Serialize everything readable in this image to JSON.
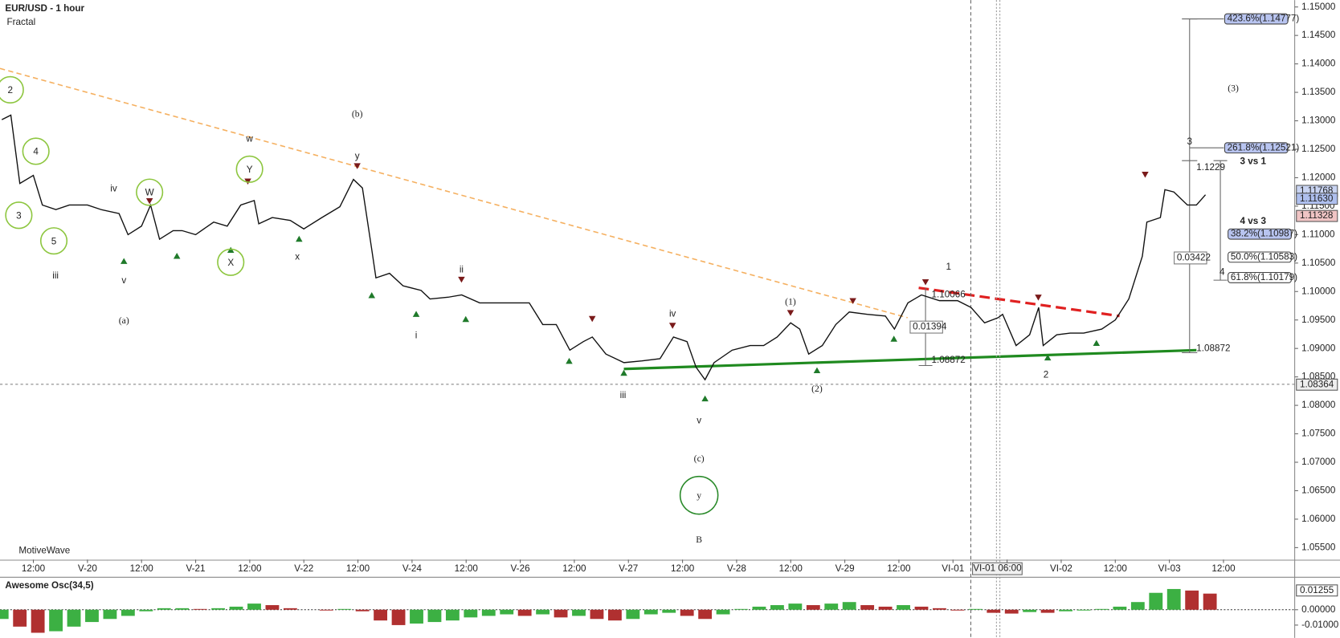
{
  "chart_data": [
    {
      "type": "line",
      "title": "EUR/USD - 1 hour",
      "subtitle": "Fractal",
      "watermark": "MotiveWave",
      "cursor_label": "VI-01 06:00",
      "color": "#111111",
      "x": [
        -7,
        -5,
        -3,
        0,
        2,
        5,
        8,
        12,
        15,
        19,
        21,
        24,
        26,
        28,
        31,
        33,
        36,
        40,
        43,
        46,
        49,
        50,
        53,
        57,
        60,
        64,
        68,
        71,
        73,
        75,
        76,
        79,
        82,
        86,
        88,
        92,
        95,
        99,
        103,
        106,
        110,
        113,
        116,
        119,
        122,
        124,
        127,
        131,
        135,
        139,
        142,
        145,
        147,
        149,
        151,
        155,
        159,
        162,
        165,
        168,
        170,
        172,
        175,
        178,
        181,
        185,
        189,
        191,
        194,
        197,
        201,
        205,
        208,
        211,
        214,
        215,
        218,
        221,
        223,
        224,
        227,
        230,
        233,
        237,
        240,
        243,
        246,
        247,
        250,
        251,
        253,
        256,
        258,
        260
      ],
      "values": [
        1.1302,
        1.131,
        1.119,
        1.1204,
        1.1152,
        1.1144,
        1.1152,
        1.1152,
        1.1144,
        1.1137,
        1.11,
        1.1115,
        1.1152,
        1.1092,
        1.1107,
        1.1107,
        1.11,
        1.1122,
        1.1115,
        1.1152,
        1.116,
        1.1119,
        1.113,
        1.1125,
        1.111,
        1.113,
        1.1149,
        1.1197,
        1.1182,
        1.1077,
        1.1024,
        1.1032,
        1.101,
        1.1002,
        1.0987,
        1.099,
        1.0994,
        1.098,
        1.098,
        1.098,
        1.098,
        1.0942,
        1.0942,
        1.0897,
        1.0912,
        1.092,
        1.089,
        1.0875,
        1.0878,
        1.0882,
        1.092,
        1.0912,
        1.0867,
        1.0845,
        1.0875,
        1.0897,
        1.0905,
        1.0905,
        1.092,
        1.0945,
        1.0934,
        1.089,
        1.0905,
        1.0942,
        1.0964,
        1.096,
        1.0957,
        1.0934,
        1.098,
        1.0994,
        1.0984,
        1.0984,
        1.0972,
        1.0945,
        1.0954,
        1.096,
        1.0905,
        1.0924,
        1.0972,
        1.0905,
        1.0924,
        1.0927,
        1.0927,
        1.0934,
        1.095,
        1.0987,
        1.1062,
        1.1122,
        1.113,
        1.1179,
        1.1175,
        1.1152,
        1.1152,
        1.117
      ],
      "xlim": [
        -7.4,
        279.8
      ],
      "xticks": [
        {
          "value": 0,
          "label": "12:00"
        },
        {
          "value": 12,
          "label": "V-20"
        },
        {
          "value": 24,
          "label": "12:00"
        },
        {
          "value": 36,
          "label": "V-21"
        },
        {
          "value": 48,
          "label": "12:00"
        },
        {
          "value": 60,
          "label": "V-22"
        },
        {
          "value": 72,
          "label": "12:00"
        },
        {
          "value": 84,
          "label": "V-24"
        },
        {
          "value": 96,
          "label": "12:00"
        },
        {
          "value": 108,
          "label": "V-26"
        },
        {
          "value": 120,
          "label": "12:00"
        },
        {
          "value": 132,
          "label": "V-27"
        },
        {
          "value": 144,
          "label": "12:00"
        },
        {
          "value": 156,
          "label": "V-28"
        },
        {
          "value": 168,
          "label": "12:00"
        },
        {
          "value": 180,
          "label": "V-29"
        },
        {
          "value": 192,
          "label": "12:00"
        },
        {
          "value": 204,
          "label": "VI-01"
        },
        {
          "value": 216,
          "label": "12:00"
        },
        {
          "value": 228,
          "label": "VI-02"
        },
        {
          "value": 240,
          "label": "12:00"
        },
        {
          "value": 252,
          "label": "VI-03"
        },
        {
          "value": 264,
          "label": "12:00"
        }
      ],
      "ylim": [
        1.0529,
        1.1512
      ],
      "yticks": [
        {
          "value": 1.055,
          "label": "1.05500"
        },
        {
          "value": 1.06,
          "label": "1.06000"
        },
        {
          "value": 1.065,
          "label": "1.06500"
        },
        {
          "value": 1.07,
          "label": "1.07000"
        },
        {
          "value": 1.075,
          "label": "1.07500"
        },
        {
          "value": 1.08,
          "label": "1.08000"
        },
        {
          "value": 1.085,
          "label": "1.08500"
        },
        {
          "value": 1.09,
          "label": "1.09000"
        },
        {
          "value": 1.095,
          "label": "1.09500"
        },
        {
          "value": 1.1,
          "label": "1.10000"
        },
        {
          "value": 1.105,
          "label": "1.10500"
        },
        {
          "value": 1.11,
          "label": "1.11000"
        },
        {
          "value": 1.115,
          "label": "1.11500"
        },
        {
          "value": 1.12,
          "label": "1.12000"
        },
        {
          "value": 1.125,
          "label": "1.12500"
        },
        {
          "value": 1.13,
          "label": "1.13000"
        },
        {
          "value": 1.135,
          "label": "1.13500"
        },
        {
          "value": 1.14,
          "label": "1.14000"
        },
        {
          "value": 1.145,
          "label": "1.14500"
        },
        {
          "value": 1.15,
          "label": "1.15000"
        }
      ],
      "markers": [
        {
          "value": 1.11768,
          "label": "1.11768",
          "color": "#c9d4f2"
        },
        {
          "value": 1.1163,
          "label": "1.11630",
          "color": "#aebfee"
        },
        {
          "value": 1.11328,
          "label": "1.11328",
          "color": "#f0c4c4"
        },
        {
          "value": 1.08364,
          "label": "1.08364",
          "color": "#eeeeee"
        }
      ],
      "annotations": [
        {
          "text": "2",
          "color": "#8dc63f",
          "circled": true
        },
        {
          "text": "4",
          "color": "#8dc63f",
          "circled": true
        },
        {
          "text": "3",
          "color": "#8dc63f",
          "circled": true
        },
        {
          "text": "5",
          "color": "#8dc63f",
          "circled": true
        },
        {
          "text": "W",
          "color": "#8dc63f",
          "circled": true
        },
        {
          "text": "Y",
          "color": "#8dc63f",
          "circled": true
        },
        {
          "text": "X",
          "color": "#8dc63f",
          "circled": true
        },
        {
          "text": "iii",
          "color": "#f26a10"
        },
        {
          "text": "iv",
          "color": "#f26a10"
        },
        {
          "text": "v",
          "color": "#f26a10"
        },
        {
          "text": "w",
          "color": "#f26a10"
        },
        {
          "text": "y",
          "color": "#f26a10"
        },
        {
          "text": "x",
          "color": "#f26a10"
        },
        {
          "text": "ii",
          "color": "#f26a10"
        },
        {
          "text": "i",
          "color": "#f26a10"
        },
        {
          "text": "iv",
          "color": "#f26a10"
        },
        {
          "text": "iii",
          "color": "#f26a10"
        },
        {
          "text": "v",
          "color": "#f26a10"
        },
        {
          "text": "1",
          "color": "#f26a10"
        },
        {
          "text": "2",
          "color": "#f26a10"
        },
        {
          "text": "3",
          "color": "#f26a10"
        },
        {
          "text": "4",
          "color": "#f26a10"
        },
        {
          "text": "(a)",
          "color": "#7b1a7b"
        },
        {
          "text": "(b)",
          "color": "#7b1a7b"
        },
        {
          "text": "(c)",
          "color": "#7b1a7b"
        },
        {
          "text": "(1)",
          "color": "#7b1a7b"
        },
        {
          "text": "(2)",
          "color": "#7b1a7b"
        },
        {
          "text": "(3)",
          "color": "#7b1a7b"
        },
        {
          "text": "y",
          "color": "#2a8a2a",
          "circled": true
        },
        {
          "text": "B",
          "color": "#ff00ff"
        }
      ],
      "fib_labels": [
        {
          "text": "423.6%(1.14777)",
          "color": "#b8c4f0"
        },
        {
          "text": "261.8%(1.12521)",
          "color": "#b8c4f0"
        },
        {
          "text": "3 vs 1",
          "color": "none"
        },
        {
          "text": "4 vs 3",
          "color": "none"
        },
        {
          "text": "38.2%(1.10987)",
          "color": "#b8c4f0"
        },
        {
          "text": "50.0%(1.10583)",
          "color": "#ffffff"
        },
        {
          "text": "61.8%(1.10179)",
          "color": "#ffffff"
        }
      ],
      "measure_labels": [
        "1.10066",
        "0.01394",
        "1.08872",
        "1.1229",
        "0.03422",
        "1.08872"
      ]
    },
    {
      "type": "bar",
      "title": "Awesome Osc(34,5)",
      "up_color": "#3cb043",
      "down_color": "#b03030",
      "zero_line": true,
      "x": [
        -7,
        -3,
        1,
        5,
        9,
        13,
        17,
        21,
        25,
        29,
        33,
        37,
        41,
        45,
        49,
        53,
        57,
        61,
        65,
        69,
        73,
        77,
        81,
        85,
        89,
        93,
        97,
        101,
        105,
        109,
        113,
        117,
        121,
        125,
        129,
        133,
        137,
        141,
        145,
        149,
        153,
        157,
        161,
        165,
        169,
        173,
        177,
        181,
        185,
        189,
        193,
        197,
        201,
        205,
        209,
        213,
        217,
        221,
        225,
        229,
        233,
        237,
        241,
        245,
        249,
        253,
        257,
        261
      ],
      "values": [
        -0.006,
        -0.011,
        -0.015,
        -0.014,
        -0.011,
        -0.008,
        -0.006,
        -0.004,
        -0.001,
        0.001,
        0.001,
        0.0005,
        0.001,
        0.002,
        0.004,
        0.003,
        0.001,
        0,
        -0.0005,
        0.0005,
        -0.001,
        -0.007,
        -0.01,
        -0.009,
        -0.008,
        -0.007,
        -0.005,
        -0.004,
        -0.003,
        -0.004,
        -0.003,
        -0.005,
        -0.004,
        -0.006,
        -0.007,
        -0.006,
        -0.003,
        -0.002,
        -0.004,
        -0.006,
        -0.003,
        0.0005,
        0.002,
        0.003,
        0.004,
        0.003,
        0.004,
        0.005,
        0.003,
        0.002,
        0.003,
        0.002,
        0.001,
        -0.0005,
        0.0005,
        -0.002,
        -0.0025,
        -0.0015,
        -0.002,
        -0.001,
        -0.0005,
        0.0005,
        0.002,
        0.005,
        0.011,
        0.0135,
        0.0125,
        0.0105
      ],
      "xlim": [
        -7.4,
        279.8
      ],
      "ylim": [
        -0.0172,
        0.0206
      ],
      "yticks": [
        {
          "value": 0,
          "label": "0.00000"
        },
        {
          "value": -0.01,
          "label": "-0.01000"
        }
      ],
      "markers": [
        {
          "value": 0.01255,
          "label": "0.01255",
          "color": "#ffffff"
        }
      ]
    }
  ]
}
